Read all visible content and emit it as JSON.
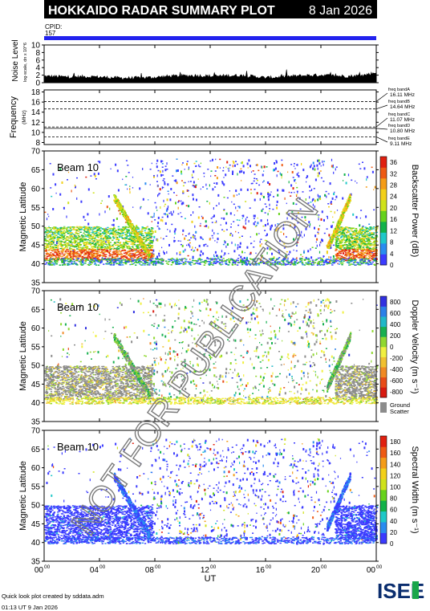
{
  "header": {
    "title": "HOKKAIDO RADAR SUMMARY PLOT",
    "date": "8 Jan 2026",
    "cpid_label": "CPID:",
    "cpid_value": "157"
  },
  "colors": {
    "header_bg": "#000000",
    "header_fg": "#ffffff",
    "cpid_bar": "#2222ee",
    "ground_scatter": "#8c8c8c",
    "watermark": "#7a7a7a"
  },
  "watermark": "NOT FOR PUBLICATION",
  "footer": {
    "created_by": "Quick look plot created by sddata.adm",
    "timestamp": "01:13 UT  9 Jan 2026",
    "logo_text": "ISEE"
  },
  "chart_data": [
    {
      "id": "noise",
      "type": "area",
      "ylabel": "Noise Level",
      "ylabel_units": "log-scale, dn x 10^6",
      "ylim": [
        0,
        10
      ],
      "yticks": [
        "0",
        "2",
        "4",
        "6",
        "8",
        "10"
      ],
      "x": [
        0,
        1,
        2,
        3,
        4,
        5,
        6,
        7,
        8,
        9,
        10,
        11,
        12,
        13,
        14,
        15,
        16,
        17,
        18,
        19,
        20,
        21,
        22,
        23,
        24
      ],
      "values": [
        1.6,
        1.5,
        1.4,
        1.5,
        1.4,
        1.2,
        1.1,
        1.2,
        1.3,
        1.6,
        1.7,
        1.8,
        1.6,
        1.7,
        1.8,
        1.6,
        1.2,
        1.4,
        1.6,
        1.8,
        1.9,
        1.7,
        1.6,
        1.8,
        2.6
      ]
    },
    {
      "id": "frequency",
      "type": "line",
      "ylabel": "Frequency",
      "ylabel_units": "(MHz)",
      "ylim": [
        7.6,
        18.4
      ],
      "yticks": [
        "8",
        "10",
        "12",
        "14",
        "16",
        "18"
      ],
      "bands": [
        {
          "label": "freq bandA",
          "value_label": "16.11 MHz",
          "mhz": 16.11,
          "style": "dashed"
        },
        {
          "label": "freq bandB",
          "value_label": "14.64 MHz",
          "mhz": 14.64,
          "style": "dashed"
        },
        {
          "label": "freq bandC",
          "value_label": "11.07 MHz",
          "mhz": 11.07,
          "style": "dashed"
        },
        {
          "label": "freq bandD",
          "value_label": "10.80 MHz",
          "mhz": 10.8,
          "style": "solid"
        },
        {
          "label": "freq bandE",
          "value_label": "9.11 MHz",
          "mhz": 9.11,
          "style": "dashed"
        }
      ]
    },
    {
      "id": "power",
      "type": "heatmap",
      "beam": "Beam 10",
      "ylabel": "Magnetic Latitude",
      "ylim": [
        35,
        70
      ],
      "yticks": [
        "35",
        "40",
        "45",
        "50",
        "55",
        "60",
        "65",
        "70"
      ],
      "colorbar_label": "Backscatter Power (dB)",
      "colorbar_ticks": [
        "0",
        "4",
        "8",
        "12",
        "16",
        "20",
        "24",
        "28",
        "32",
        "36"
      ],
      "colorbar_range": [
        0,
        38
      ],
      "colorscale": [
        "#3b3bff",
        "#2a8cf0",
        "#1fc8c8",
        "#12b24a",
        "#66d21c",
        "#cfe21a",
        "#f2d01a",
        "#f49c18",
        "#ee5a14",
        "#e02010"
      ]
    },
    {
      "id": "velocity",
      "type": "heatmap",
      "beam": "Beam 10",
      "ylabel": "Magnetic Latitude",
      "ylim": [
        35,
        70
      ],
      "yticks": [
        "35",
        "40",
        "45",
        "50",
        "55",
        "60",
        "65",
        "70"
      ],
      "colorbar_label": "Doppler Velocity (m s⁻¹)",
      "colorbar_ticks": [
        "800",
        "600",
        "400",
        "200",
        "0",
        "-200",
        "-400",
        "-600",
        "-800"
      ],
      "colorbar_range": [
        -900,
        900
      ],
      "colorscale": [
        "#3030e0",
        "#2a80e8",
        "#20b8c8",
        "#18b050",
        "#90d830",
        "#f0f040",
        "#f0c030",
        "#f08a24",
        "#e84c18",
        "#d81a10"
      ],
      "ground_scatter_label": "Ground Scatter"
    },
    {
      "id": "width",
      "type": "heatmap",
      "beam": "Beam 10",
      "ylabel": "Magnetic Latitude",
      "ylim": [
        35,
        70
      ],
      "yticks": [
        "35",
        "40",
        "45",
        "50",
        "55",
        "60",
        "65",
        "70"
      ],
      "colorbar_label": "Spectral Width (m s⁻¹)",
      "colorbar_ticks": [
        "0",
        "20",
        "40",
        "60",
        "80",
        "100",
        "120",
        "140",
        "160",
        "180"
      ],
      "colorbar_range": [
        0,
        190
      ],
      "colorscale": [
        "#3b3bff",
        "#2a8cf0",
        "#1fc8c8",
        "#12b24a",
        "#66d21c",
        "#cfe21a",
        "#f2d01a",
        "#f49c18",
        "#ee5a14",
        "#e02010"
      ]
    }
  ],
  "x_axis": {
    "xlabel": "UT",
    "xlim": [
      0,
      24
    ],
    "ticks": [
      {
        "value": 0,
        "hh": "00",
        "mm": "00"
      },
      {
        "value": 4,
        "hh": "04",
        "mm": "00"
      },
      {
        "value": 8,
        "hh": "08",
        "mm": "00"
      },
      {
        "value": 12,
        "hh": "12",
        "mm": "00"
      },
      {
        "value": 16,
        "hh": "16",
        "mm": "00"
      },
      {
        "value": 20,
        "hh": "20",
        "mm": "00"
      },
      {
        "value": 24,
        "hh": "00",
        "mm": "00"
      }
    ]
  }
}
